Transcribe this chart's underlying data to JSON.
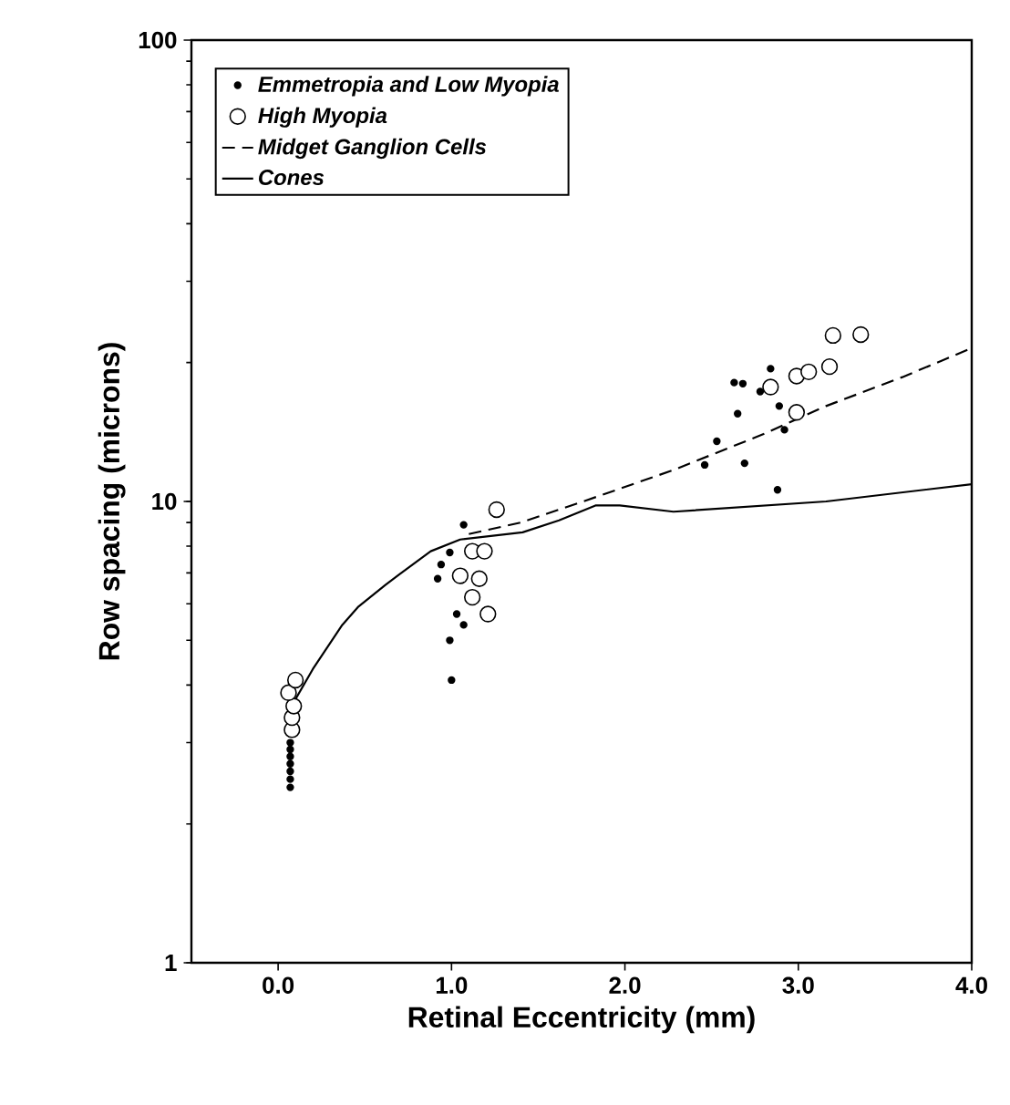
{
  "chart_data": {
    "type": "scatter",
    "xlabel": "Retinal Eccentricity (mm)",
    "ylabel": "Row spacing (microns)",
    "log": "y",
    "xlim": [
      -0.5,
      4.0
    ],
    "ylim": [
      1,
      100
    ],
    "xticks": [
      {
        "value": 0,
        "label": "0.0"
      },
      {
        "value": 1,
        "label": "1.0"
      },
      {
        "value": 2,
        "label": "2.0"
      },
      {
        "value": 3,
        "label": "3.0"
      },
      {
        "value": 4,
        "label": "4.0"
      }
    ],
    "yticks": [
      1,
      10,
      100
    ],
    "legend": "top left",
    "grid": false,
    "series": [
      {
        "name": "Emmetropia and Low Myopia",
        "marker": "circle",
        "color": "#000000",
        "x": [
          0.07,
          0.07,
          0.07,
          0.07,
          0.07,
          0.07,
          0.07,
          1.07,
          0.99,
          0.94,
          0.92,
          1.03,
          1.07,
          0.99,
          1.0,
          2.84,
          2.63,
          2.68,
          2.78,
          2.89,
          2.65,
          2.92,
          2.53,
          2.46,
          2.69,
          2.88
        ],
        "values": [
          2.4,
          2.5,
          2.6,
          2.7,
          2.8,
          2.9,
          3.0,
          8.9,
          7.75,
          7.3,
          6.8,
          5.7,
          5.4,
          5.0,
          4.1,
          19.4,
          18.1,
          18.0,
          17.3,
          16.1,
          15.5,
          14.3,
          13.5,
          12.0,
          12.1,
          10.6
        ]
      },
      {
        "name": "High Myopia",
        "marker": "circle",
        "color": "#ffffff",
        "x": [
          0.08,
          0.08,
          0.09,
          0.06,
          0.1,
          1.26,
          1.12,
          1.19,
          1.05,
          1.16,
          1.12,
          1.21,
          2.84,
          2.99,
          3.06,
          3.18,
          3.2,
          3.36,
          2.99
        ],
        "values": [
          3.2,
          3.4,
          3.6,
          3.85,
          4.1,
          9.6,
          7.8,
          7.8,
          6.9,
          6.8,
          6.2,
          5.7,
          17.7,
          18.7,
          19.1,
          19.6,
          22.9,
          23.0,
          15.6
        ]
      },
      {
        "name": "Midget Ganglion Cells",
        "type": "line",
        "line_style": "dashed",
        "marker": "none",
        "color": "#000000",
        "x": [
          1.1,
          1.4,
          1.76,
          2.28,
          2.8,
          3.16,
          3.6,
          4.0
        ],
        "values": [
          8.5,
          9.0,
          10.0,
          11.7,
          14.0,
          16.1,
          18.6,
          21.5
        ]
      },
      {
        "name": "Cones",
        "type": "line",
        "line_style": "solid",
        "marker": "none",
        "color": "#000000",
        "x": [
          0.05,
          0.09,
          0.2,
          0.37,
          0.46,
          0.62,
          0.7,
          0.88,
          1.05,
          1.41,
          1.62,
          1.83,
          1.97,
          2.28,
          3.16,
          4.0
        ],
        "values": [
          3.27,
          3.67,
          4.33,
          5.4,
          5.9,
          6.6,
          6.95,
          7.8,
          8.27,
          8.57,
          9.1,
          9.8,
          9.8,
          9.5,
          10.0,
          10.9
        ]
      }
    ]
  }
}
